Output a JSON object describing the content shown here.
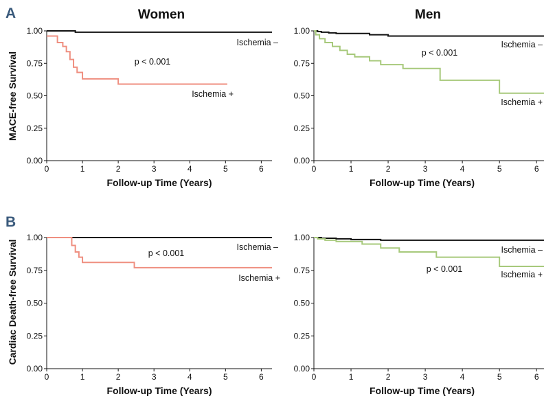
{
  "figure": {
    "panel_a_label": "A",
    "panel_b_label": "B",
    "col_women": "Women",
    "col_men": "Men",
    "ylabel_a": "MACE-free Survival",
    "ylabel_b": "Cardiac Death-free Survival"
  },
  "colors": {
    "ischemia_neg": "#111111",
    "women_ischemia_pos": "#ef8f80",
    "men_ischemia_pos": "#a7c97b"
  },
  "chart_data": [
    {
      "type": "line",
      "panel": "A",
      "column": "Women",
      "xlabel": "Follow-up Time (Years)",
      "ylabel": "MACE-free Survival",
      "xlim": [
        0,
        6.3
      ],
      "ylim": [
        0,
        1.0
      ],
      "xticks": [
        "0",
        "1",
        "2",
        "3",
        "4",
        "5",
        "6"
      ],
      "yticks": [
        "0.00",
        "0.25",
        "0.50",
        "0.75",
        "1.00"
      ],
      "annotation": "p < 0.001",
      "series": [
        {
          "name": "Ischemia –",
          "color": "#111111",
          "x": [
            0,
            0.8,
            6.3
          ],
          "y": [
            1.0,
            0.99,
            0.99
          ]
        },
        {
          "name": "Ischemia +",
          "color": "#ef8f80",
          "x": [
            0,
            0.3,
            0.45,
            0.55,
            0.65,
            0.75,
            0.85,
            1.0,
            2.0,
            5.05
          ],
          "y": [
            0.96,
            0.91,
            0.88,
            0.84,
            0.78,
            0.72,
            0.68,
            0.63,
            0.59,
            0.59
          ]
        }
      ]
    },
    {
      "type": "line",
      "panel": "A",
      "column": "Men",
      "xlabel": "Follow-up Time (Years)",
      "ylabel": "",
      "xlim": [
        0,
        6.2
      ],
      "ylim": [
        0,
        1.0
      ],
      "xticks": [
        "0",
        "1",
        "2",
        "3",
        "4",
        "5",
        "6"
      ],
      "yticks": [
        "0.00",
        "0.25",
        "0.50",
        "0.75",
        "1.00"
      ],
      "annotation": "p < 0.001",
      "series": [
        {
          "name": "Ischemia –",
          "color": "#111111",
          "x": [
            0,
            0.1,
            0.2,
            0.4,
            0.6,
            1.5,
            2.0,
            6.2
          ],
          "y": [
            1.0,
            0.995,
            0.99,
            0.985,
            0.98,
            0.97,
            0.96,
            0.96
          ]
        },
        {
          "name": "Ischemia +",
          "color": "#a7c97b",
          "x": [
            0,
            0.05,
            0.15,
            0.3,
            0.5,
            0.7,
            0.9,
            1.1,
            1.5,
            1.8,
            2.4,
            3.4,
            5.0,
            6.2
          ],
          "y": [
            1.0,
            0.97,
            0.94,
            0.91,
            0.88,
            0.85,
            0.82,
            0.8,
            0.77,
            0.74,
            0.71,
            0.62,
            0.52,
            0.52
          ]
        }
      ]
    },
    {
      "type": "line",
      "panel": "B",
      "column": "Women",
      "xlabel": "Follow-up Time (Years)",
      "ylabel": "Cardiac Death-free Survival",
      "xlim": [
        0,
        6.3
      ],
      "ylim": [
        0,
        1.0
      ],
      "xticks": [
        "0",
        "1",
        "2",
        "3",
        "4",
        "5",
        "6"
      ],
      "yticks": [
        "0.00",
        "0.25",
        "0.50",
        "0.75",
        "1.00"
      ],
      "annotation": "p < 0.001",
      "series": [
        {
          "name": "Ischemia –",
          "color": "#111111",
          "x": [
            0,
            6.3
          ],
          "y": [
            1.0,
            1.0
          ]
        },
        {
          "name": "Ischemia +",
          "color": "#ef8f80",
          "x": [
            0,
            0.7,
            0.8,
            0.9,
            1.0,
            2.45,
            6.3
          ],
          "y": [
            1.0,
            0.94,
            0.89,
            0.85,
            0.81,
            0.77,
            0.77
          ]
        }
      ]
    },
    {
      "type": "line",
      "panel": "B",
      "column": "Men",
      "xlabel": "Follow-up Time (Years)",
      "ylabel": "",
      "xlim": [
        0,
        6.2
      ],
      "ylim": [
        0,
        1.0
      ],
      "xticks": [
        "0",
        "1",
        "2",
        "3",
        "4",
        "5",
        "6"
      ],
      "yticks": [
        "0.00",
        "0.25",
        "0.50",
        "0.75",
        "1.00"
      ],
      "annotation": "p < 0.001",
      "series": [
        {
          "name": "Ischemia –",
          "color": "#111111",
          "x": [
            0,
            0.2,
            0.6,
            1.0,
            1.8,
            6.2
          ],
          "y": [
            1.0,
            0.995,
            0.99,
            0.985,
            0.98,
            0.98
          ]
        },
        {
          "name": "Ischemia +",
          "color": "#a7c97b",
          "x": [
            0,
            0.1,
            0.3,
            0.6,
            1.3,
            1.8,
            2.3,
            3.3,
            5.0,
            6.2
          ],
          "y": [
            1.0,
            0.99,
            0.98,
            0.97,
            0.95,
            0.92,
            0.89,
            0.85,
            0.78,
            0.78
          ]
        }
      ]
    }
  ]
}
